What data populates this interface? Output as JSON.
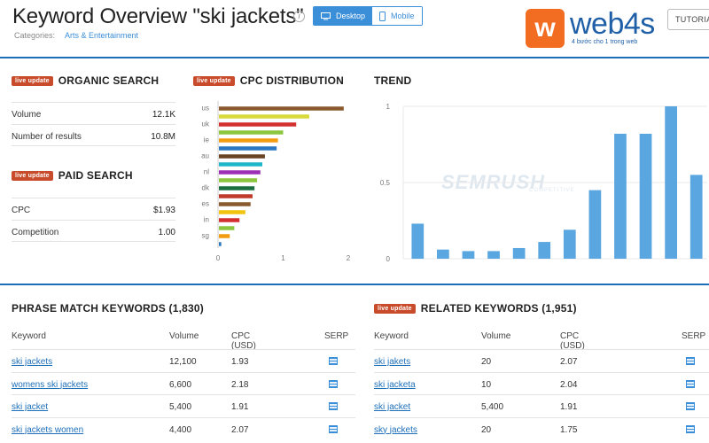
{
  "header": {
    "title": "Keyword Overview \"ski jackets\"",
    "info_glyph": "i",
    "device_options": [
      "Desktop",
      "Mobile"
    ],
    "selected_device": "Desktop",
    "categories_label": "Categories:",
    "category": "Arts & Entertainment",
    "tutorial_label": "TUTORIAL",
    "logo_letter": "w",
    "logo_text": "web4s",
    "logo_tagline": "4 bước cho 1 trong web"
  },
  "badge_label": "live update",
  "organic": {
    "title": "ORGANIC SEARCH",
    "rows": [
      {
        "label": "Volume",
        "value": "12.1K"
      },
      {
        "label": "Number of results",
        "value": "10.8M"
      }
    ]
  },
  "paid": {
    "title": "PAID SEARCH",
    "rows": [
      {
        "label": "CPC",
        "value": "$1.93"
      },
      {
        "label": "Competition",
        "value": "1.00"
      }
    ]
  },
  "cpc_title": "CPC DISTRIBUTION",
  "trend_title": "TREND",
  "watermark": "SEMRUSH",
  "watermark_sub": "COMPETITIVE",
  "chart_data": [
    {
      "type": "bar",
      "orientation": "horizontal",
      "title": "CPC DISTRIBUTION",
      "categories": [
        "us",
        "",
        "uk",
        "",
        "ie",
        "",
        "au",
        "",
        "nl",
        "",
        "dk",
        "",
        "es",
        "",
        "in",
        "",
        "sg",
        ""
      ],
      "values": [
        1.93,
        1.4,
        1.2,
        1.0,
        0.92,
        0.9,
        0.72,
        0.68,
        0.65,
        0.6,
        0.56,
        0.53,
        0.5,
        0.42,
        0.33,
        0.25,
        0.18,
        0.05
      ],
      "colors": [
        "#8a5a2f",
        "#d8da3b",
        "#d32f2f",
        "#8cc63f",
        "#f39c12",
        "#2b78c2",
        "#6b4423",
        "#1fb6c9",
        "#9b2fb5",
        "#8cc63f",
        "#1b6e3f",
        "#c0392b",
        "#8a5a2f",
        "#f1c40f",
        "#d32f2f",
        "#8cc63f",
        "#f39c12",
        "#2b78c2"
      ],
      "xlim": [
        0,
        2
      ],
      "xticks": [
        "0",
        "1",
        "2"
      ]
    },
    {
      "type": "bar",
      "title": "TREND",
      "values": [
        0.23,
        0.06,
        0.05,
        0.05,
        0.07,
        0.11,
        0.19,
        0.45,
        0.82,
        0.82,
        1.0,
        0.55
      ],
      "color": "#5aa6e0",
      "ylim": [
        0,
        1
      ],
      "yticks": [
        "0",
        "0.5",
        "1"
      ]
    }
  ],
  "phrase": {
    "title": "PHRASE MATCH KEYWORDS (1,830)",
    "columns": [
      "Keyword",
      "Volume",
      "CPC (USD)",
      "SERP"
    ],
    "rows": [
      {
        "keyword": "ski jackets",
        "volume": "12,100",
        "cpc": "1.93"
      },
      {
        "keyword": "womens ski jackets",
        "volume": "6,600",
        "cpc": "2.18"
      },
      {
        "keyword": "ski jacket",
        "volume": "5,400",
        "cpc": "1.91"
      },
      {
        "keyword": "ski jackets women",
        "volume": "4,400",
        "cpc": "2.07"
      }
    ]
  },
  "related": {
    "title": "RELATED KEYWORDS (1,951)",
    "columns": [
      "Keyword",
      "Volume",
      "CPC (USD)",
      "SERP"
    ],
    "rows": [
      {
        "keyword": "ski jakets",
        "volume": "20",
        "cpc": "2.07"
      },
      {
        "keyword": "ski jacketa",
        "volume": "10",
        "cpc": "2.04"
      },
      {
        "keyword": "ski jacket",
        "volume": "5,400",
        "cpc": "1.91"
      },
      {
        "keyword": "sky jackets",
        "volume": "20",
        "cpc": "1.75"
      }
    ]
  }
}
